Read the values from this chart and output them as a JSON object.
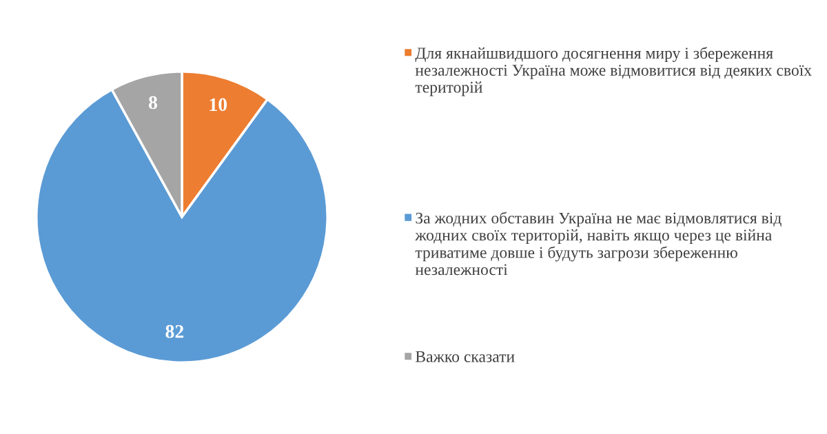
{
  "chart_data": {
    "type": "pie",
    "categories": [
      "Для якнайшвидшого досягнення миру і збереження незалежності Україна може відмовитися від деяких своїх територій",
      "За жодних обставин Україна не має відмовлятися від жодних своїх територій, навіть якщо через це війна триватиме довше і будуть загрози збереженню незалежності",
      "Важко сказати"
    ],
    "values": [
      10,
      82,
      8
    ],
    "colors": [
      "#ed7d31",
      "#5b9bd5",
      "#a5a5a5"
    ],
    "data_labels": true,
    "legend": "right"
  }
}
